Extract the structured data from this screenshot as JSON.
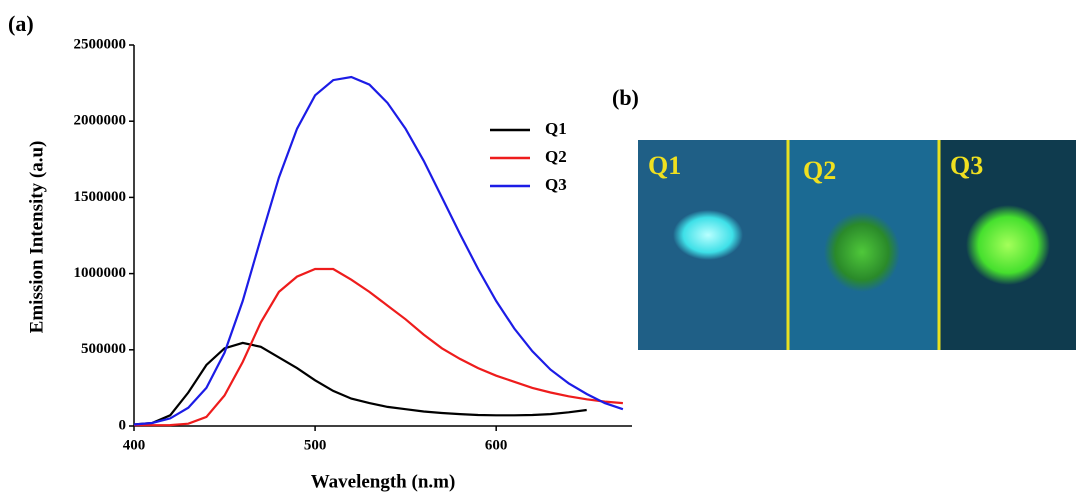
{
  "panel_labels": [
    "(a)",
    "(b)"
  ],
  "photo": {
    "labels": [
      "Q1",
      "Q2",
      "Q3"
    ]
  },
  "chart_data": {
    "type": "line",
    "x_label": "Wavelength (n.m)",
    "y_label": "Emission Intensity (a.u)",
    "x": [
      400,
      410,
      420,
      430,
      440,
      450,
      460,
      470,
      480,
      490,
      500,
      510,
      520,
      530,
      540,
      550,
      560,
      570,
      580,
      590,
      600,
      610,
      620,
      630,
      640,
      650,
      660,
      670
    ],
    "series": [
      {
        "name": "Q1",
        "color": "#000000",
        "values": [
          10000,
          20000,
          70000,
          220000,
          400000,
          510000,
          545000,
          520000,
          450000,
          380000,
          300000,
          230000,
          180000,
          150000,
          125000,
          110000,
          95000,
          85000,
          78000,
          72000,
          70000,
          70000,
          72000,
          78000,
          90000,
          105000,
          null,
          null
        ]
      },
      {
        "name": "Q2",
        "color": "#ee1c1c",
        "values": [
          5000,
          5000,
          6000,
          15000,
          60000,
          200000,
          420000,
          680000,
          880000,
          980000,
          1030000,
          1030000,
          960000,
          880000,
          790000,
          700000,
          600000,
          510000,
          440000,
          380000,
          330000,
          290000,
          250000,
          220000,
          195000,
          175000,
          160000,
          150000
        ]
      },
      {
        "name": "Q3",
        "color": "#1c1ce6",
        "values": [
          10000,
          20000,
          50000,
          120000,
          250000,
          480000,
          820000,
          1230000,
          1630000,
          1950000,
          2170000,
          2270000,
          2290000,
          2240000,
          2120000,
          1950000,
          1740000,
          1500000,
          1260000,
          1030000,
          820000,
          640000,
          490000,
          370000,
          280000,
          210000,
          150000,
          110000
        ]
      }
    ],
    "xlim": [
      400,
      675
    ],
    "xticks": [
      400,
      500,
      600
    ],
    "ylim": [
      0,
      2500000
    ],
    "yticks": [
      0,
      500000,
      1000000,
      1500000,
      2000000,
      2500000
    ],
    "grid": false
  }
}
